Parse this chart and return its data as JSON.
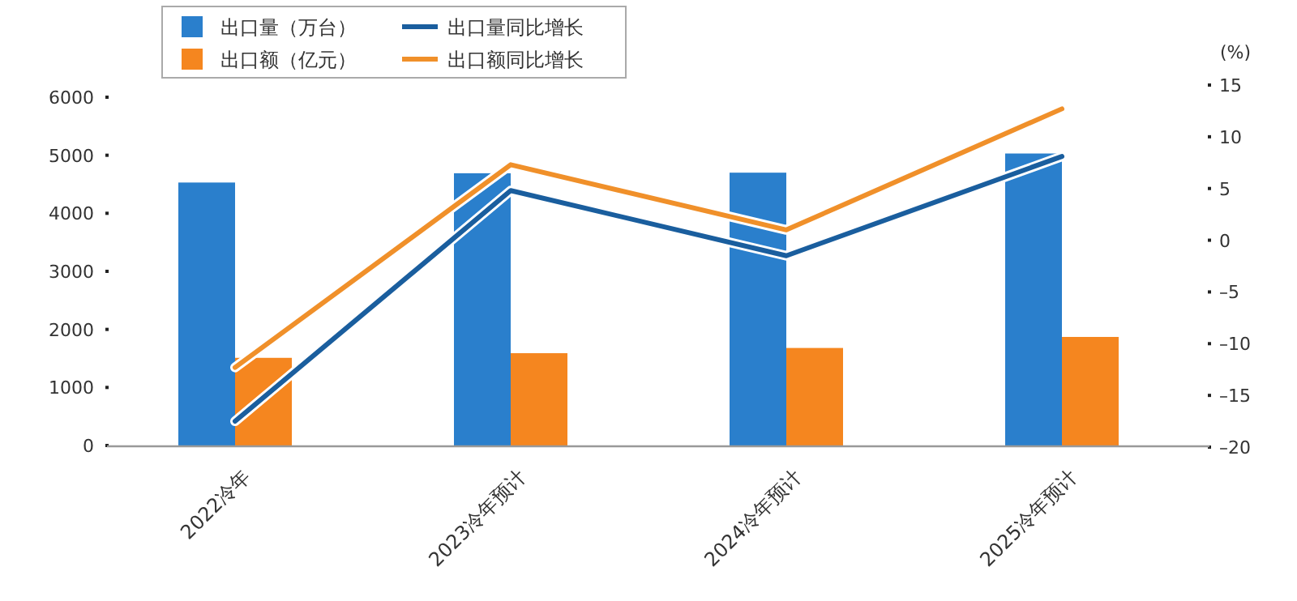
{
  "chart_data": {
    "type": "bar",
    "categories": [
      "2022冷年",
      "2023冷年预计",
      "2024冷年预计",
      "2025冷年预计"
    ],
    "series": [
      {
        "name": "出口量（万台）",
        "color": "#2a7fcc",
        "values": [
          4530,
          4690,
          4700,
          5030
        ]
      },
      {
        "name": "出口额（亿元）",
        "color": "#f5861f",
        "values": [
          1510,
          1590,
          1680,
          1870
        ]
      },
      {
        "name": "出口量同比增长",
        "type": "line",
        "axis": "y2",
        "color": "#1a5e9e",
        "values": [
          -17.5,
          4.8,
          -1.5,
          8.1
        ]
      },
      {
        "name": "出口额同比增长",
        "type": "line",
        "axis": "y2",
        "color": "#f0902a",
        "values": [
          -12.3,
          7.3,
          1.0,
          12.7
        ]
      }
    ],
    "ylim": [
      0,
      6000
    ],
    "yticks": [
      0,
      1000,
      2000,
      3000,
      4000,
      5000,
      6000
    ],
    "y2label": "(%)",
    "y2lim": [
      -20,
      15
    ],
    "y2ticks": [
      {
        "value": -20,
        "label": "–20"
      },
      {
        "value": -15,
        "label": "–15"
      },
      {
        "value": -10,
        "label": "–10"
      },
      {
        "value": -5,
        "label": "–5"
      },
      0,
      5,
      10,
      15
    ],
    "grid": false,
    "legend": "top",
    "marker": "none"
  }
}
